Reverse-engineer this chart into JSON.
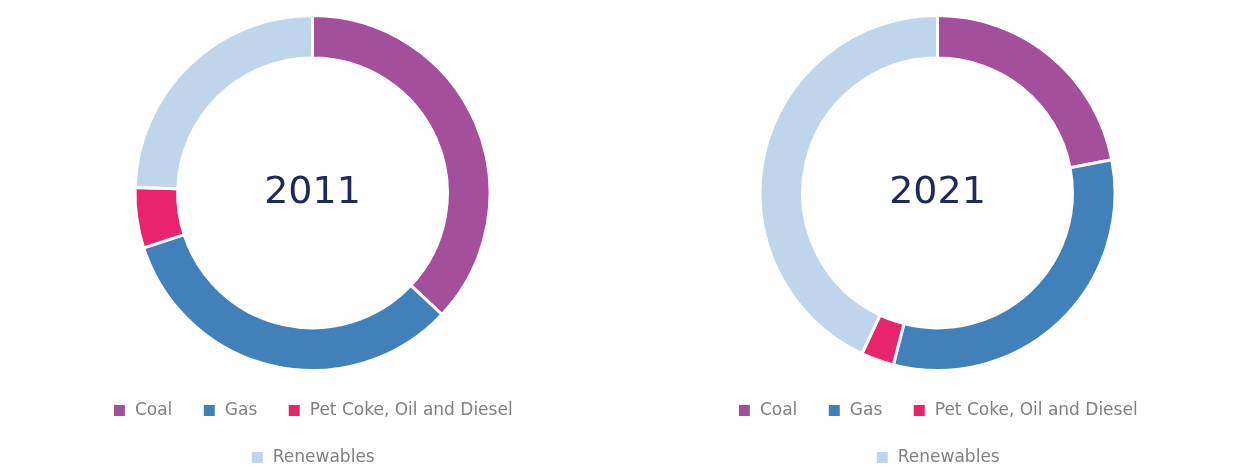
{
  "chart_data": [
    {
      "type": "donut",
      "title": "2011",
      "categories": [
        "Coal",
        "Gas",
        "Pet Coke, Oil and Diesel",
        "Renewables"
      ],
      "values": [
        37,
        33,
        5.5,
        24.5
      ],
      "colors": [
        "#a34f9b",
        "#4280b9",
        "#e8246f",
        "#bfd5ec"
      ],
      "legend": "bottom"
    },
    {
      "type": "donut",
      "title": "2021",
      "categories": [
        "Coal",
        "Gas",
        "Pet Coke, Oil and Diesel",
        "Renewables"
      ],
      "values": [
        22,
        32,
        3,
        43
      ],
      "colors": [
        "#a34f9b",
        "#4280b9",
        "#e8246f",
        "#bfd5ec"
      ],
      "legend": "bottom"
    }
  ]
}
